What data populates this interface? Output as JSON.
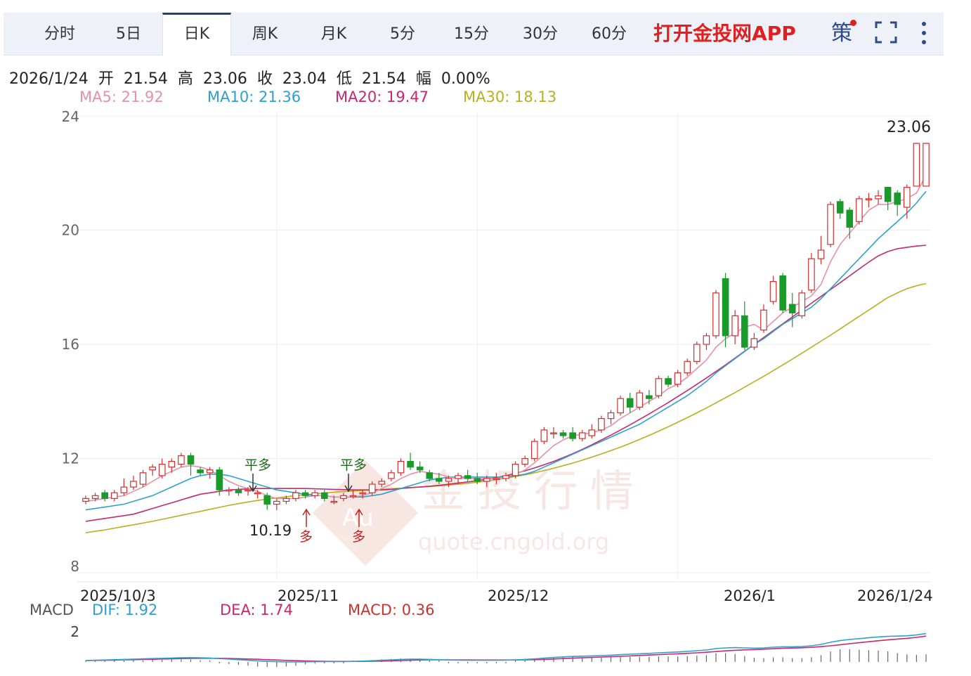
{
  "tabs": [
    {
      "label": "分时"
    },
    {
      "label": "5日"
    },
    {
      "label": "日K",
      "active": true
    },
    {
      "label": "周K"
    },
    {
      "label": "月K"
    },
    {
      "label": "5分"
    },
    {
      "label": "15分"
    },
    {
      "label": "30分"
    },
    {
      "label": "60分"
    }
  ],
  "promo_label": "打开金投网APP",
  "strategy_label": "策",
  "info": {
    "date": "2026/1/24",
    "open_label": "开",
    "open": "21.54",
    "high_label": "高",
    "high": "23.06",
    "close_label": "收",
    "close": "23.04",
    "low_label": "低",
    "low": "21.54",
    "change_label": "幅",
    "change": "0.00%"
  },
  "ma_legend": [
    {
      "text": "MA5: 21.92",
      "color": "#e890a8"
    },
    {
      "text": "MA10: 21.36",
      "color": "#2ea0d0"
    },
    {
      "text": "MA20: 19.47",
      "color": "#c8286e"
    },
    {
      "text": "MA30: 18.13",
      "color": "#b8b020"
    }
  ],
  "watermark": {
    "title": "金投行情",
    "url": "quote.cngold.org",
    "logo": "Au"
  },
  "macd_legend": {
    "label": "MACD",
    "dif": "DIF: 1.92",
    "dea": "DEA: 1.74",
    "macd": "MACD: 0.36",
    "dif_color": "#2ea0d0",
    "dea_color": "#c8286e",
    "macd_color": "#d03030"
  },
  "colors": {
    "up": "#d03030",
    "down": "#1a9a2a",
    "grid": "#eeeeee",
    "axis_text": "#666666"
  },
  "chart_data": [
    {
      "type": "candlestick",
      "ylim": [
        8,
        24
      ],
      "y_ticks": [
        "24",
        "20",
        "16",
        "12",
        "8"
      ],
      "x_tick_labels": [
        "2025/10/3",
        "2025/11",
        "2025/12",
        "2026/1",
        "2026/1/24"
      ],
      "annotations": [
        {
          "text": "23.06",
          "kind": "max",
          "value": 23.06
        },
        {
          "text": "10.19",
          "kind": "min",
          "value": 10.19
        },
        {
          "text": "平多",
          "kind": "signal-down"
        },
        {
          "text": "多",
          "kind": "signal-up"
        },
        {
          "text": "平多",
          "kind": "signal-down"
        },
        {
          "text": "多",
          "kind": "signal-up"
        }
      ],
      "candles_ohlc": [
        [
          10.5,
          10.7,
          10.4,
          10.6
        ],
        [
          10.6,
          10.8,
          10.5,
          10.7
        ],
        [
          10.8,
          10.9,
          10.5,
          10.6
        ],
        [
          10.6,
          10.9,
          10.5,
          10.8
        ],
        [
          10.8,
          11.3,
          10.7,
          11.0
        ],
        [
          11.0,
          11.4,
          10.9,
          11.2
        ],
        [
          11.1,
          11.6,
          11.0,
          11.5
        ],
        [
          11.6,
          11.8,
          11.4,
          11.7
        ],
        [
          11.4,
          12.0,
          11.3,
          11.8
        ],
        [
          11.7,
          12.0,
          11.5,
          11.9
        ],
        [
          11.8,
          12.2,
          11.7,
          12.1
        ],
        [
          12.1,
          12.2,
          11.4,
          11.8
        ],
        [
          11.6,
          11.7,
          11.4,
          11.5
        ],
        [
          11.5,
          11.7,
          11.3,
          11.6
        ],
        [
          11.6,
          11.7,
          10.7,
          10.9
        ],
        [
          10.9,
          11.0,
          10.7,
          10.9
        ],
        [
          10.9,
          11.0,
          10.7,
          10.8
        ],
        [
          10.9,
          11.0,
          10.7,
          10.9
        ],
        [
          10.8,
          10.9,
          10.6,
          10.8
        ],
        [
          10.7,
          10.8,
          10.2,
          10.4
        ],
        [
          10.4,
          10.6,
          10.19,
          10.5
        ],
        [
          10.5,
          10.7,
          10.4,
          10.6
        ],
        [
          10.6,
          10.9,
          10.5,
          10.8
        ],
        [
          10.8,
          10.9,
          10.6,
          10.7
        ],
        [
          10.7,
          10.9,
          10.6,
          10.8
        ],
        [
          10.8,
          10.9,
          10.5,
          10.6
        ],
        [
          10.5,
          10.7,
          10.4,
          10.5
        ],
        [
          10.6,
          10.8,
          10.5,
          10.7
        ],
        [
          10.7,
          10.9,
          10.6,
          10.7
        ],
        [
          10.8,
          10.9,
          10.6,
          10.8
        ],
        [
          10.8,
          11.2,
          10.7,
          11.1
        ],
        [
          11.1,
          11.3,
          11.0,
          11.2
        ],
        [
          11.3,
          11.6,
          11.2,
          11.5
        ],
        [
          11.5,
          12.0,
          11.4,
          11.9
        ],
        [
          11.9,
          12.2,
          11.6,
          11.7
        ],
        [
          11.7,
          11.9,
          11.5,
          11.6
        ],
        [
          11.5,
          11.6,
          11.2,
          11.3
        ],
        [
          11.3,
          11.5,
          11.1,
          11.2
        ],
        [
          11.2,
          11.4,
          11.0,
          11.3
        ],
        [
          11.3,
          11.5,
          11.1,
          11.4
        ],
        [
          11.4,
          11.6,
          11.2,
          11.3
        ],
        [
          11.3,
          11.5,
          11.1,
          11.2
        ],
        [
          11.2,
          11.4,
          11.0,
          11.3
        ],
        [
          11.3,
          11.5,
          11.1,
          11.3
        ],
        [
          11.3,
          11.5,
          11.2,
          11.4
        ],
        [
          11.4,
          11.9,
          11.3,
          11.8
        ],
        [
          11.8,
          12.1,
          11.7,
          12.0
        ],
        [
          12.0,
          12.7,
          11.9,
          12.6
        ],
        [
          12.6,
          13.1,
          12.5,
          13.0
        ],
        [
          12.9,
          13.1,
          12.7,
          12.9
        ],
        [
          12.9,
          13.0,
          12.7,
          12.8
        ],
        [
          12.9,
          13.1,
          12.6,
          12.7
        ],
        [
          12.7,
          13.0,
          12.6,
          12.9
        ],
        [
          12.8,
          13.2,
          12.7,
          13.0
        ],
        [
          13.0,
          13.5,
          12.9,
          13.4
        ],
        [
          13.4,
          13.7,
          13.2,
          13.6
        ],
        [
          13.6,
          14.2,
          13.5,
          14.1
        ],
        [
          14.1,
          14.3,
          13.6,
          13.8
        ],
        [
          13.8,
          14.4,
          13.7,
          14.3
        ],
        [
          14.2,
          14.4,
          13.9,
          14.1
        ],
        [
          14.2,
          14.9,
          14.1,
          14.8
        ],
        [
          14.8,
          14.9,
          14.5,
          14.6
        ],
        [
          14.6,
          15.1,
          14.5,
          15.0
        ],
        [
          15.0,
          15.5,
          14.9,
          15.4
        ],
        [
          15.4,
          16.1,
          15.3,
          16.0
        ],
        [
          16.0,
          16.4,
          15.8,
          16.3
        ],
        [
          16.3,
          17.9,
          16.2,
          17.8
        ],
        [
          18.3,
          18.5,
          15.9,
          16.3
        ],
        [
          16.3,
          17.2,
          16.0,
          17.0
        ],
        [
          17.0,
          17.5,
          15.8,
          15.9
        ],
        [
          15.9,
          16.4,
          15.8,
          16.2
        ],
        [
          16.5,
          17.4,
          16.4,
          17.2
        ],
        [
          17.5,
          18.4,
          17.4,
          18.2
        ],
        [
          18.4,
          18.5,
          17.1,
          17.2
        ],
        [
          17.4,
          17.8,
          16.6,
          17.1
        ],
        [
          17.0,
          17.9,
          16.9,
          17.8
        ],
        [
          17.9,
          19.2,
          17.8,
          19.0
        ],
        [
          19.0,
          19.8,
          18.8,
          19.3
        ],
        [
          19.5,
          21.0,
          19.4,
          20.9
        ],
        [
          21.0,
          21.1,
          20.4,
          20.6
        ],
        [
          20.7,
          20.8,
          19.7,
          20.1
        ],
        [
          20.3,
          21.2,
          20.2,
          21.1
        ],
        [
          21.1,
          21.3,
          20.8,
          21.1
        ],
        [
          21.1,
          21.4,
          20.9,
          21.2
        ],
        [
          21.5,
          21.5,
          20.7,
          21.0
        ],
        [
          21.3,
          21.4,
          20.5,
          20.9
        ],
        [
          20.8,
          21.6,
          20.4,
          21.5
        ],
        [
          21.54,
          23.06,
          21.54,
          23.04
        ],
        [
          21.54,
          23.06,
          21.54,
          23.04
        ]
      ],
      "ma5": [
        10.5,
        10.55,
        10.6,
        10.65,
        10.7,
        10.85,
        11.0,
        11.2,
        11.4,
        11.55,
        11.7,
        11.75,
        11.7,
        11.6,
        11.4,
        11.2,
        11.05,
        10.95,
        10.85,
        10.7,
        10.6,
        10.6,
        10.6,
        10.65,
        10.7,
        10.7,
        10.65,
        10.65,
        10.65,
        10.7,
        10.8,
        10.95,
        11.1,
        11.3,
        11.45,
        11.55,
        11.5,
        11.45,
        11.35,
        11.3,
        11.3,
        11.3,
        11.3,
        11.3,
        11.35,
        11.45,
        11.6,
        11.85,
        12.15,
        12.45,
        12.65,
        12.8,
        12.85,
        12.9,
        13.0,
        13.15,
        13.4,
        13.6,
        13.8,
        14.0,
        14.2,
        14.45,
        14.6,
        14.85,
        15.15,
        15.45,
        15.9,
        16.2,
        16.4,
        16.6,
        16.7,
        16.5,
        16.8,
        17.1,
        17.3,
        17.5,
        17.7,
        18.1,
        18.9,
        19.5,
        19.9,
        20.3,
        20.7,
        20.9,
        20.9,
        21.0,
        21.1,
        21.3,
        21.92
      ],
      "ma10": [
        10.2,
        10.25,
        10.3,
        10.35,
        10.4,
        10.5,
        10.6,
        10.7,
        10.85,
        11.0,
        11.15,
        11.3,
        11.4,
        11.45,
        11.45,
        11.4,
        11.3,
        11.2,
        11.1,
        11.0,
        10.9,
        10.85,
        10.8,
        10.75,
        10.7,
        10.7,
        10.65,
        10.65,
        10.65,
        10.65,
        10.7,
        10.75,
        10.85,
        10.95,
        11.05,
        11.15,
        11.25,
        11.3,
        11.35,
        11.35,
        11.35,
        11.35,
        11.35,
        11.35,
        11.35,
        11.4,
        11.45,
        11.55,
        11.7,
        11.85,
        12.0,
        12.15,
        12.3,
        12.45,
        12.6,
        12.75,
        12.9,
        13.05,
        13.2,
        13.4,
        13.6,
        13.8,
        14.0,
        14.2,
        14.45,
        14.7,
        15.0,
        15.25,
        15.5,
        15.75,
        16.0,
        16.2,
        16.45,
        16.7,
        16.9,
        17.1,
        17.3,
        17.6,
        17.95,
        18.3,
        18.65,
        19.0,
        19.35,
        19.7,
        20.0,
        20.3,
        20.6,
        20.95,
        21.36
      ],
      "ma20": [
        9.8,
        9.85,
        9.9,
        9.95,
        10.0,
        10.05,
        10.15,
        10.25,
        10.35,
        10.45,
        10.55,
        10.65,
        10.75,
        10.8,
        10.85,
        10.9,
        10.92,
        10.94,
        10.95,
        10.95,
        10.95,
        10.95,
        10.95,
        10.95,
        10.94,
        10.93,
        10.92,
        10.91,
        10.9,
        10.9,
        10.9,
        10.9,
        10.92,
        10.95,
        10.98,
        11.0,
        11.03,
        11.06,
        11.1,
        11.14,
        11.18,
        11.22,
        11.27,
        11.33,
        11.4,
        11.48,
        11.57,
        11.67,
        11.78,
        11.9,
        12.03,
        12.17,
        12.32,
        12.48,
        12.65,
        12.82,
        13.0,
        13.18,
        13.37,
        13.56,
        13.76,
        13.96,
        14.17,
        14.38,
        14.6,
        14.82,
        15.05,
        15.28,
        15.52,
        15.76,
        16.0,
        16.24,
        16.48,
        16.72,
        16.96,
        17.2,
        17.44,
        17.68,
        17.92,
        18.16,
        18.4,
        18.64,
        18.88,
        19.1,
        19.25,
        19.35,
        19.4,
        19.44,
        19.47
      ],
      "ma30": [
        9.4,
        9.45,
        9.5,
        9.56,
        9.62,
        9.68,
        9.74,
        9.8,
        9.87,
        9.94,
        10.01,
        10.08,
        10.15,
        10.22,
        10.29,
        10.36,
        10.42,
        10.48,
        10.53,
        10.58,
        10.62,
        10.66,
        10.7,
        10.73,
        10.76,
        10.79,
        10.82,
        10.84,
        10.86,
        10.88,
        10.9,
        10.92,
        10.94,
        10.96,
        10.98,
        11.0,
        11.02,
        11.04,
        11.07,
        11.1,
        11.13,
        11.17,
        11.21,
        11.26,
        11.31,
        11.37,
        11.43,
        11.5,
        11.58,
        11.66,
        11.75,
        11.84,
        11.94,
        12.05,
        12.16,
        12.28,
        12.4,
        12.53,
        12.67,
        12.81,
        12.96,
        13.11,
        13.27,
        13.43,
        13.6,
        13.77,
        13.95,
        14.13,
        14.31,
        14.5,
        14.69,
        14.88,
        15.08,
        15.28,
        15.48,
        15.69,
        15.9,
        16.11,
        16.32,
        16.54,
        16.76,
        16.98,
        17.2,
        17.42,
        17.64,
        17.8,
        17.95,
        18.05,
        18.13
      ]
    },
    {
      "type": "macd",
      "ylim": [
        -0.5,
        2.5
      ],
      "y_ticks": [
        "2"
      ],
      "dif": [
        0.0,
        0.02,
        0.04,
        0.06,
        0.08,
        0.1,
        0.12,
        0.14,
        0.16,
        0.18,
        0.2,
        0.21,
        0.2,
        0.18,
        0.14,
        0.1,
        0.06,
        0.02,
        -0.02,
        -0.06,
        -0.08,
        -0.1,
        -0.1,
        -0.09,
        -0.08,
        -0.07,
        -0.07,
        -0.07,
        -0.06,
        -0.04,
        -0.01,
        0.02,
        0.05,
        0.08,
        0.1,
        0.1,
        0.08,
        0.06,
        0.04,
        0.03,
        0.02,
        0.02,
        0.02,
        0.02,
        0.03,
        0.05,
        0.08,
        0.12,
        0.17,
        0.22,
        0.26,
        0.29,
        0.31,
        0.33,
        0.35,
        0.38,
        0.42,
        0.45,
        0.48,
        0.51,
        0.55,
        0.58,
        0.61,
        0.65,
        0.7,
        0.75,
        0.85,
        0.9,
        0.92,
        0.9,
        0.88,
        0.9,
        0.95,
        0.98,
        0.98,
        1.0,
        1.05,
        1.15,
        1.3,
        1.42,
        1.5,
        1.56,
        1.62,
        1.68,
        1.72,
        1.74,
        1.76,
        1.82,
        1.92
      ],
      "dea": [
        0.0,
        0.01,
        0.02,
        0.03,
        0.05,
        0.06,
        0.08,
        0.09,
        0.11,
        0.12,
        0.14,
        0.15,
        0.16,
        0.16,
        0.16,
        0.15,
        0.13,
        0.11,
        0.09,
        0.06,
        0.04,
        0.01,
        -0.01,
        -0.03,
        -0.04,
        -0.05,
        -0.06,
        -0.06,
        -0.06,
        -0.06,
        -0.05,
        -0.04,
        -0.02,
        0.0,
        0.02,
        0.04,
        0.05,
        0.05,
        0.05,
        0.05,
        0.05,
        0.04,
        0.04,
        0.04,
        0.04,
        0.04,
        0.05,
        0.06,
        0.08,
        0.11,
        0.14,
        0.17,
        0.2,
        0.22,
        0.25,
        0.27,
        0.3,
        0.33,
        0.36,
        0.39,
        0.42,
        0.45,
        0.48,
        0.51,
        0.55,
        0.59,
        0.64,
        0.69,
        0.73,
        0.76,
        0.78,
        0.81,
        0.84,
        0.87,
        0.89,
        0.91,
        0.94,
        0.99,
        1.05,
        1.12,
        1.2,
        1.27,
        1.34,
        1.41,
        1.47,
        1.53,
        1.58,
        1.65,
        1.74
      ]
    }
  ]
}
